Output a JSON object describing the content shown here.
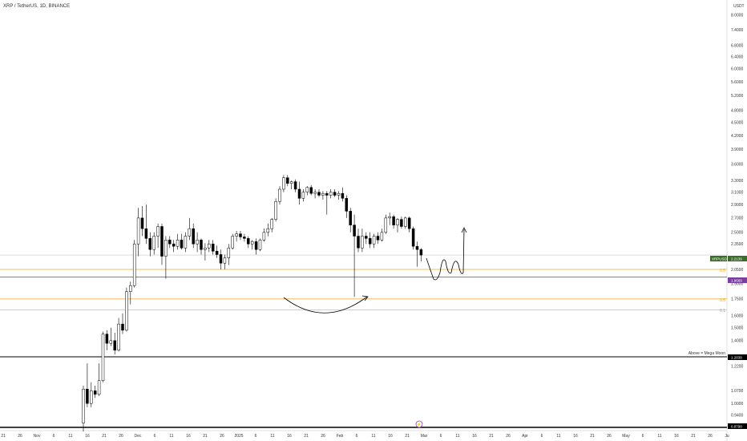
{
  "header": {
    "symbol_title": "XRP / TetherUS, 1D, BINANCE",
    "currency": "USDT"
  },
  "colors": {
    "background": "#ffffff",
    "candle_up_fill": "#ffffff",
    "candle_down_fill": "#000000",
    "candle_stroke": "#000000",
    "fib_orange": "#f5a623",
    "fib_gray": "#b0b0b0",
    "support_line": "#000000",
    "purple_line": "#7b3fa0",
    "price_badge": "#3d6b2a",
    "drawing": "#000000"
  },
  "price_axis": {
    "ticks": [
      "8.0000",
      "7.4000",
      "6.8000",
      "6.4000",
      "6.0000",
      "5.6000",
      "5.2000",
      "4.8000",
      "4.5000",
      "4.2000",
      "3.9000",
      "3.6000",
      "3.3000",
      "3.1000",
      "2.9000",
      "2.7000",
      "2.5000",
      "2.3500",
      "2.0500",
      "1.9000",
      "1.7500",
      "1.6000",
      "1.5000",
      "1.4000",
      "1.2200",
      "1.0700",
      "1.0000",
      "0.9400"
    ],
    "tick_values": [
      8.0,
      7.4,
      6.8,
      6.4,
      6.0,
      5.6,
      5.2,
      4.8,
      4.5,
      4.2,
      3.9,
      3.6,
      3.3,
      3.1,
      2.9,
      2.7,
      2.5,
      2.35,
      2.05,
      1.9,
      1.75,
      1.6,
      1.5,
      1.4,
      1.22,
      1.07,
      1.0,
      0.94
    ],
    "scale": "log"
  },
  "time_axis": {
    "labels": [
      "21",
      "26",
      "Nov",
      "6",
      "11",
      "16",
      "21",
      "26",
      "Dec",
      "6",
      "11",
      "16",
      "21",
      "26",
      "2025",
      "6",
      "11",
      "16",
      "21",
      "26",
      "Feb",
      "6",
      "11",
      "16",
      "21",
      "Mar",
      "6",
      "11",
      "16",
      "21",
      "26",
      "Apr",
      "6",
      "11",
      "16",
      "21",
      "26",
      "May",
      "6",
      "11",
      "16",
      "21",
      "26",
      "Ju"
    ]
  },
  "badges": {
    "current_symbol": "XRPUSDT",
    "current_price": "2.2139",
    "purple_level": "1.9669",
    "support_level": "1.2838",
    "bottom_level": "0.8798"
  },
  "annotations": {
    "mega_moon": "Above = Mega Moon",
    "fib_05_upper": "0.5",
    "fib_05_lower": "0.5",
    "fib_01": "0.1"
  },
  "chart_data": {
    "type": "candlestick",
    "title": "XRP / TetherUS, 1D, BINANCE",
    "y_scale": "log",
    "ylim": [
      0.88,
      9.0
    ],
    "levels": [
      {
        "label": "XRPUSDT",
        "value": 2.2139
      },
      {
        "label": "0.5",
        "value": 2.05
      },
      {
        "label": "",
        "value": 1.9669
      },
      {
        "label": "0.5",
        "value": 1.75
      },
      {
        "label": "0.1",
        "value": 1.65
      },
      {
        "label": "Above = Mega Moon",
        "value": 1.2838
      },
      {
        "label": "",
        "value": 0.8798
      }
    ],
    "candles": [
      {
        "o": 0.9,
        "h": 1.1,
        "l": 0.86,
        "c": 1.08
      },
      {
        "o": 1.08,
        "h": 1.24,
        "l": 0.98,
        "c": 1.0
      },
      {
        "o": 1.0,
        "h": 1.12,
        "l": 0.98,
        "c": 1.07
      },
      {
        "o": 1.07,
        "h": 1.1,
        "l": 1.03,
        "c": 1.05
      },
      {
        "o": 1.05,
        "h": 1.24,
        "l": 1.04,
        "c": 1.13
      },
      {
        "o": 1.13,
        "h": 1.47,
        "l": 1.12,
        "c": 1.45
      },
      {
        "o": 1.45,
        "h": 1.48,
        "l": 1.33,
        "c": 1.38
      },
      {
        "o": 1.38,
        "h": 1.5,
        "l": 1.36,
        "c": 1.4
      },
      {
        "o": 1.4,
        "h": 1.46,
        "l": 1.3,
        "c": 1.33
      },
      {
        "o": 1.33,
        "h": 1.58,
        "l": 1.32,
        "c": 1.53
      },
      {
        "o": 1.53,
        "h": 1.62,
        "l": 1.45,
        "c": 1.48
      },
      {
        "o": 1.48,
        "h": 1.86,
        "l": 1.47,
        "c": 1.82
      },
      {
        "o": 1.82,
        "h": 1.92,
        "l": 1.7,
        "c": 1.88
      },
      {
        "o": 1.88,
        "h": 2.4,
        "l": 1.86,
        "c": 2.35
      },
      {
        "o": 2.35,
        "h": 2.85,
        "l": 2.2,
        "c": 2.7
      },
      {
        "o": 2.7,
        "h": 2.88,
        "l": 2.45,
        "c": 2.55
      },
      {
        "o": 2.55,
        "h": 2.9,
        "l": 2.35,
        "c": 2.42
      },
      {
        "o": 2.42,
        "h": 2.5,
        "l": 2.2,
        "c": 2.28
      },
      {
        "o": 2.28,
        "h": 2.5,
        "l": 2.22,
        "c": 2.45
      },
      {
        "o": 2.45,
        "h": 2.62,
        "l": 2.3,
        "c": 2.58
      },
      {
        "o": 2.58,
        "h": 2.62,
        "l": 2.1,
        "c": 2.2
      },
      {
        "o": 2.2,
        "h": 2.45,
        "l": 1.95,
        "c": 2.4
      },
      {
        "o": 2.4,
        "h": 2.45,
        "l": 2.3,
        "c": 2.35
      },
      {
        "o": 2.35,
        "h": 2.4,
        "l": 2.25,
        "c": 2.32
      },
      {
        "o": 2.32,
        "h": 2.48,
        "l": 2.28,
        "c": 2.4
      },
      {
        "o": 2.4,
        "h": 2.48,
        "l": 2.28,
        "c": 2.3
      },
      {
        "o": 2.3,
        "h": 2.5,
        "l": 2.25,
        "c": 2.45
      },
      {
        "o": 2.45,
        "h": 2.7,
        "l": 2.4,
        "c": 2.55
      },
      {
        "o": 2.55,
        "h": 2.62,
        "l": 2.3,
        "c": 2.35
      },
      {
        "o": 2.35,
        "h": 2.5,
        "l": 2.25,
        "c": 2.4
      },
      {
        "o": 2.4,
        "h": 2.42,
        "l": 2.22,
        "c": 2.28
      },
      {
        "o": 2.28,
        "h": 2.36,
        "l": 2.15,
        "c": 2.3
      },
      {
        "o": 2.3,
        "h": 2.4,
        "l": 2.25,
        "c": 2.35
      },
      {
        "o": 2.35,
        "h": 2.4,
        "l": 2.22,
        "c": 2.26
      },
      {
        "o": 2.26,
        "h": 2.33,
        "l": 2.18,
        "c": 2.22
      },
      {
        "o": 2.22,
        "h": 2.28,
        "l": 2.05,
        "c": 2.12
      },
      {
        "o": 2.12,
        "h": 2.22,
        "l": 2.05,
        "c": 2.18
      },
      {
        "o": 2.18,
        "h": 2.35,
        "l": 2.1,
        "c": 2.3
      },
      {
        "o": 2.3,
        "h": 2.48,
        "l": 2.28,
        "c": 2.45
      },
      {
        "o": 2.45,
        "h": 2.52,
        "l": 2.38,
        "c": 2.48
      },
      {
        "o": 2.48,
        "h": 2.52,
        "l": 2.4,
        "c": 2.44
      },
      {
        "o": 2.44,
        "h": 2.48,
        "l": 2.38,
        "c": 2.42
      },
      {
        "o": 2.42,
        "h": 2.45,
        "l": 2.3,
        "c": 2.35
      },
      {
        "o": 2.35,
        "h": 2.4,
        "l": 2.28,
        "c": 2.38
      },
      {
        "o": 2.38,
        "h": 2.42,
        "l": 2.22,
        "c": 2.28
      },
      {
        "o": 2.28,
        "h": 2.42,
        "l": 2.26,
        "c": 2.4
      },
      {
        "o": 2.4,
        "h": 2.55,
        "l": 2.38,
        "c": 2.5
      },
      {
        "o": 2.5,
        "h": 2.62,
        "l": 2.45,
        "c": 2.55
      },
      {
        "o": 2.55,
        "h": 2.7,
        "l": 2.5,
        "c": 2.68
      },
      {
        "o": 2.68,
        "h": 3.0,
        "l": 2.65,
        "c": 2.95
      },
      {
        "o": 2.95,
        "h": 3.2,
        "l": 2.9,
        "c": 3.15
      },
      {
        "o": 3.15,
        "h": 3.4,
        "l": 3.1,
        "c": 3.35
      },
      {
        "o": 3.35,
        "h": 3.4,
        "l": 3.2,
        "c": 3.25
      },
      {
        "o": 3.25,
        "h": 3.3,
        "l": 3.15,
        "c": 3.28
      },
      {
        "o": 3.28,
        "h": 3.32,
        "l": 3.1,
        "c": 3.15
      },
      {
        "o": 3.15,
        "h": 3.28,
        "l": 2.9,
        "c": 3.0
      },
      {
        "o": 3.0,
        "h": 3.15,
        "l": 2.95,
        "c": 3.1
      },
      {
        "o": 3.1,
        "h": 3.2,
        "l": 3.05,
        "c": 3.18
      },
      {
        "o": 3.18,
        "h": 3.22,
        "l": 3.05,
        "c": 3.08
      },
      {
        "o": 3.08,
        "h": 3.15,
        "l": 3.0,
        "c": 3.1
      },
      {
        "o": 3.1,
        "h": 3.15,
        "l": 3.02,
        "c": 3.05
      },
      {
        "o": 3.05,
        "h": 3.12,
        "l": 2.98,
        "c": 3.08
      },
      {
        "o": 3.08,
        "h": 3.12,
        "l": 2.75,
        "c": 3.05
      },
      {
        "o": 3.05,
        "h": 3.15,
        "l": 3.0,
        "c": 3.1
      },
      {
        "o": 3.1,
        "h": 3.15,
        "l": 3.02,
        "c": 3.05
      },
      {
        "o": 3.05,
        "h": 3.12,
        "l": 2.98,
        "c": 3.08
      },
      {
        "o": 3.08,
        "h": 3.18,
        "l": 2.95,
        "c": 3.0
      },
      {
        "o": 3.0,
        "h": 3.05,
        "l": 2.7,
        "c": 2.8
      },
      {
        "o": 2.8,
        "h": 2.85,
        "l": 2.5,
        "c": 2.6
      },
      {
        "o": 2.6,
        "h": 2.75,
        "l": 1.77,
        "c": 2.45
      },
      {
        "o": 2.45,
        "h": 2.55,
        "l": 2.25,
        "c": 2.3
      },
      {
        "o": 2.3,
        "h": 2.55,
        "l": 2.25,
        "c": 2.45
      },
      {
        "o": 2.45,
        "h": 2.5,
        "l": 2.35,
        "c": 2.42
      },
      {
        "o": 2.42,
        "h": 2.5,
        "l": 2.3,
        "c": 2.35
      },
      {
        "o": 2.35,
        "h": 2.48,
        "l": 2.3,
        "c": 2.45
      },
      {
        "o": 2.45,
        "h": 2.5,
        "l": 2.35,
        "c": 2.4
      },
      {
        "o": 2.4,
        "h": 2.55,
        "l": 2.38,
        "c": 2.5
      },
      {
        "o": 2.5,
        "h": 2.75,
        "l": 2.48,
        "c": 2.7
      },
      {
        "o": 2.7,
        "h": 2.78,
        "l": 2.6,
        "c": 2.72
      },
      {
        "o": 2.72,
        "h": 2.75,
        "l": 2.55,
        "c": 2.6
      },
      {
        "o": 2.6,
        "h": 2.7,
        "l": 2.5,
        "c": 2.68
      },
      {
        "o": 2.68,
        "h": 2.72,
        "l": 2.55,
        "c": 2.58
      },
      {
        "o": 2.58,
        "h": 2.72,
        "l": 2.55,
        "c": 2.7
      },
      {
        "o": 2.7,
        "h": 2.72,
        "l": 2.5,
        "c": 2.55
      },
      {
        "o": 2.55,
        "h": 2.58,
        "l": 2.28,
        "c": 2.32
      },
      {
        "o": 2.32,
        "h": 2.38,
        "l": 2.08,
        "c": 2.28
      },
      {
        "o": 2.28,
        "h": 2.3,
        "l": 2.14,
        "c": 2.2139
      }
    ]
  }
}
